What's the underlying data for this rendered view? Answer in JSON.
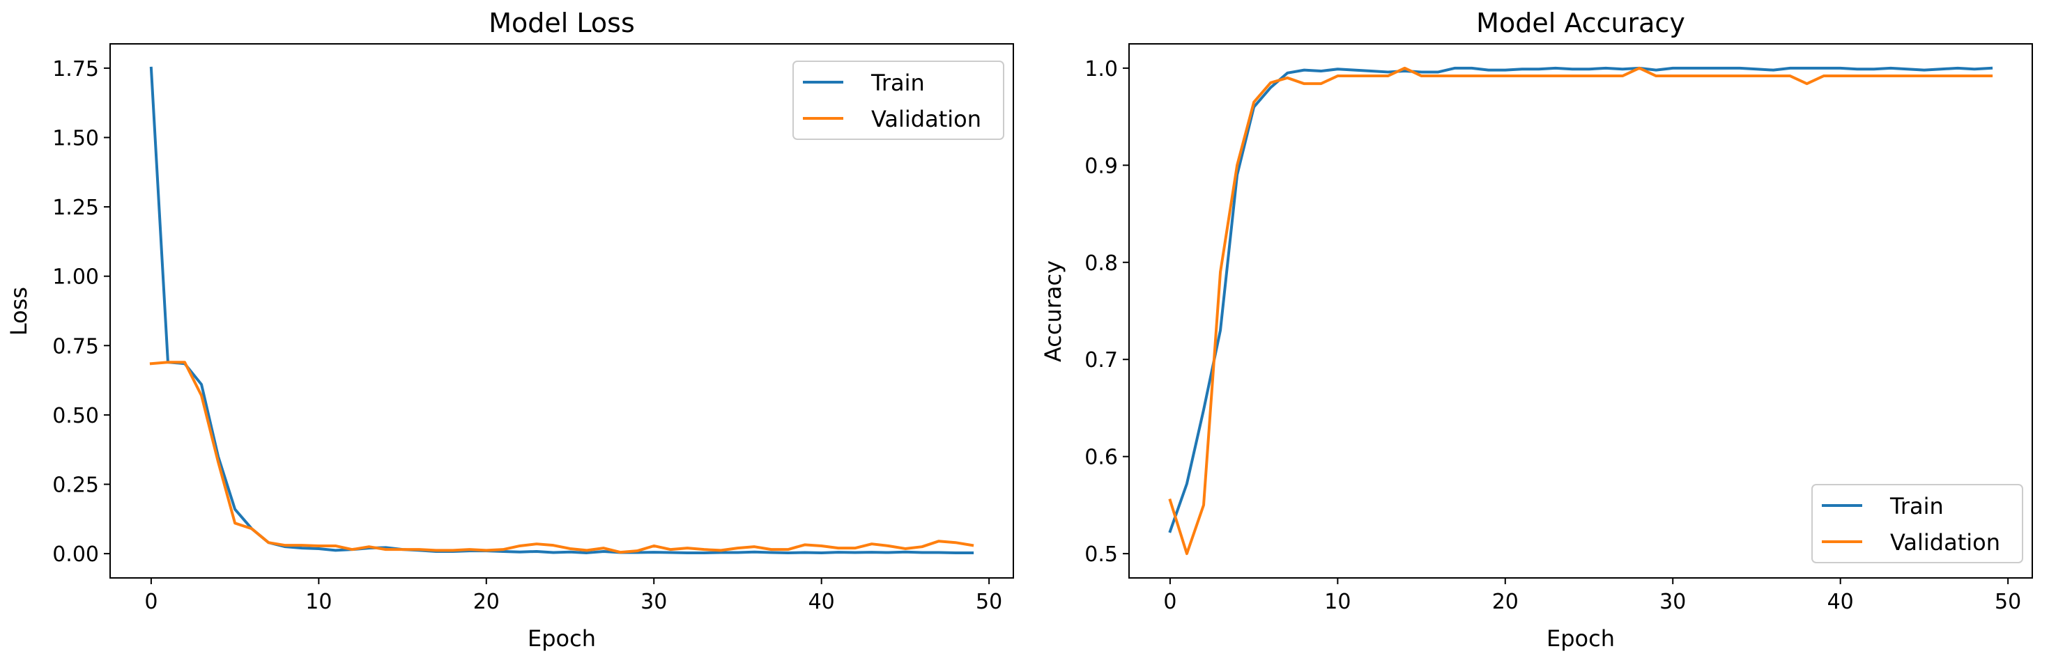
{
  "chart_data": [
    {
      "type": "line",
      "title": "Model Loss",
      "xlabel": "Epoch",
      "ylabel": "Loss",
      "xlim": [
        -2.45,
        51.45
      ],
      "ylim": [
        -0.0875,
        1.8375
      ],
      "xticks": [
        0,
        10,
        20,
        30,
        40,
        50
      ],
      "xtick_labels": [
        "0",
        "10",
        "20",
        "30",
        "40",
        "50"
      ],
      "yticks": [
        0,
        0.25,
        0.5,
        0.75,
        1.0,
        1.25,
        1.5,
        1.75
      ],
      "ytick_labels": [
        "0.00",
        "0.25",
        "0.50",
        "0.75",
        "1.00",
        "1.25",
        "1.50",
        "1.75"
      ],
      "legend": {
        "position": "top-right",
        "entries": [
          "Train",
          "Validation"
        ]
      },
      "x": [
        0,
        1,
        2,
        3,
        4,
        5,
        6,
        7,
        8,
        9,
        10,
        11,
        12,
        13,
        14,
        15,
        16,
        17,
        18,
        19,
        20,
        21,
        22,
        23,
        24,
        25,
        26,
        27,
        28,
        29,
        30,
        31,
        32,
        33,
        34,
        35,
        36,
        37,
        38,
        39,
        40,
        41,
        42,
        43,
        44,
        45,
        46,
        47,
        48,
        49
      ],
      "series": [
        {
          "name": "Train",
          "color": "#1f77b4",
          "values": [
            1.75,
            0.69,
            0.685,
            0.61,
            0.35,
            0.16,
            0.09,
            0.04,
            0.025,
            0.02,
            0.018,
            0.012,
            0.015,
            0.02,
            0.022,
            0.015,
            0.012,
            0.008,
            0.008,
            0.01,
            0.01,
            0.008,
            0.006,
            0.008,
            0.004,
            0.006,
            0.003,
            0.008,
            0.004,
            0.004,
            0.005,
            0.004,
            0.003,
            0.003,
            0.004,
            0.004,
            0.006,
            0.004,
            0.003,
            0.004,
            0.003,
            0.005,
            0.004,
            0.005,
            0.004,
            0.006,
            0.004,
            0.004,
            0.003,
            0.003
          ]
        },
        {
          "name": "Validation",
          "color": "#ff7f0e",
          "values": [
            0.685,
            0.69,
            0.69,
            0.57,
            0.33,
            0.11,
            0.09,
            0.04,
            0.03,
            0.03,
            0.028,
            0.028,
            0.015,
            0.025,
            0.015,
            0.015,
            0.015,
            0.012,
            0.012,
            0.015,
            0.012,
            0.015,
            0.028,
            0.035,
            0.03,
            0.018,
            0.012,
            0.02,
            0.005,
            0.01,
            0.028,
            0.015,
            0.02,
            0.015,
            0.012,
            0.02,
            0.025,
            0.015,
            0.015,
            0.032,
            0.028,
            0.02,
            0.02,
            0.035,
            0.028,
            0.018,
            0.025,
            0.045,
            0.04,
            0.03
          ]
        }
      ]
    },
    {
      "type": "line",
      "title": "Model Accuracy",
      "xlabel": "Epoch",
      "ylabel": "Accuracy",
      "xlim": [
        -2.45,
        51.45
      ],
      "ylim": [
        0.475,
        1.025
      ],
      "xticks": [
        0,
        10,
        20,
        30,
        40,
        50
      ],
      "xtick_labels": [
        "0",
        "10",
        "20",
        "30",
        "40",
        "50"
      ],
      "yticks": [
        0.5,
        0.6,
        0.7,
        0.8,
        0.9,
        1.0
      ],
      "ytick_labels": [
        "0.5",
        "0.6",
        "0.7",
        "0.8",
        "0.9",
        "1.0"
      ],
      "legend": {
        "position": "bottom-right",
        "entries": [
          "Train",
          "Validation"
        ]
      },
      "x": [
        0,
        1,
        2,
        3,
        4,
        5,
        6,
        7,
        8,
        9,
        10,
        11,
        12,
        13,
        14,
        15,
        16,
        17,
        18,
        19,
        20,
        21,
        22,
        23,
        24,
        25,
        26,
        27,
        28,
        29,
        30,
        31,
        32,
        33,
        34,
        35,
        36,
        37,
        38,
        39,
        40,
        41,
        42,
        43,
        44,
        45,
        46,
        47,
        48,
        49
      ],
      "series": [
        {
          "name": "Train",
          "color": "#1f77b4",
          "values": [
            0.523,
            0.572,
            0.648,
            0.73,
            0.89,
            0.96,
            0.98,
            0.995,
            0.998,
            0.997,
            0.999,
            0.998,
            0.997,
            0.996,
            0.997,
            0.996,
            0.996,
            1.0,
            1.0,
            0.998,
            0.998,
            0.999,
            0.999,
            1.0,
            0.999,
            0.999,
            1.0,
            0.999,
            1.0,
            0.998,
            1.0,
            1.0,
            1.0,
            1.0,
            1.0,
            0.999,
            0.998,
            1.0,
            1.0,
            1.0,
            1.0,
            0.999,
            0.999,
            1.0,
            0.999,
            0.998,
            0.999,
            1.0,
            0.999,
            1.0
          ]
        },
        {
          "name": "Validation",
          "color": "#ff7f0e",
          "values": [
            0.555,
            0.5,
            0.55,
            0.79,
            0.9,
            0.965,
            0.985,
            0.99,
            0.984,
            0.984,
            0.992,
            0.992,
            0.992,
            0.992,
            1.0,
            0.992,
            0.992,
            0.992,
            0.992,
            0.992,
            0.992,
            0.992,
            0.992,
            0.992,
            0.992,
            0.992,
            0.992,
            0.992,
            1.0,
            0.992,
            0.992,
            0.992,
            0.992,
            0.992,
            0.992,
            0.992,
            0.992,
            0.992,
            0.984,
            0.992,
            0.992,
            0.992,
            0.992,
            0.992,
            0.992,
            0.992,
            0.992,
            0.992,
            0.992,
            0.992
          ]
        }
      ]
    }
  ]
}
